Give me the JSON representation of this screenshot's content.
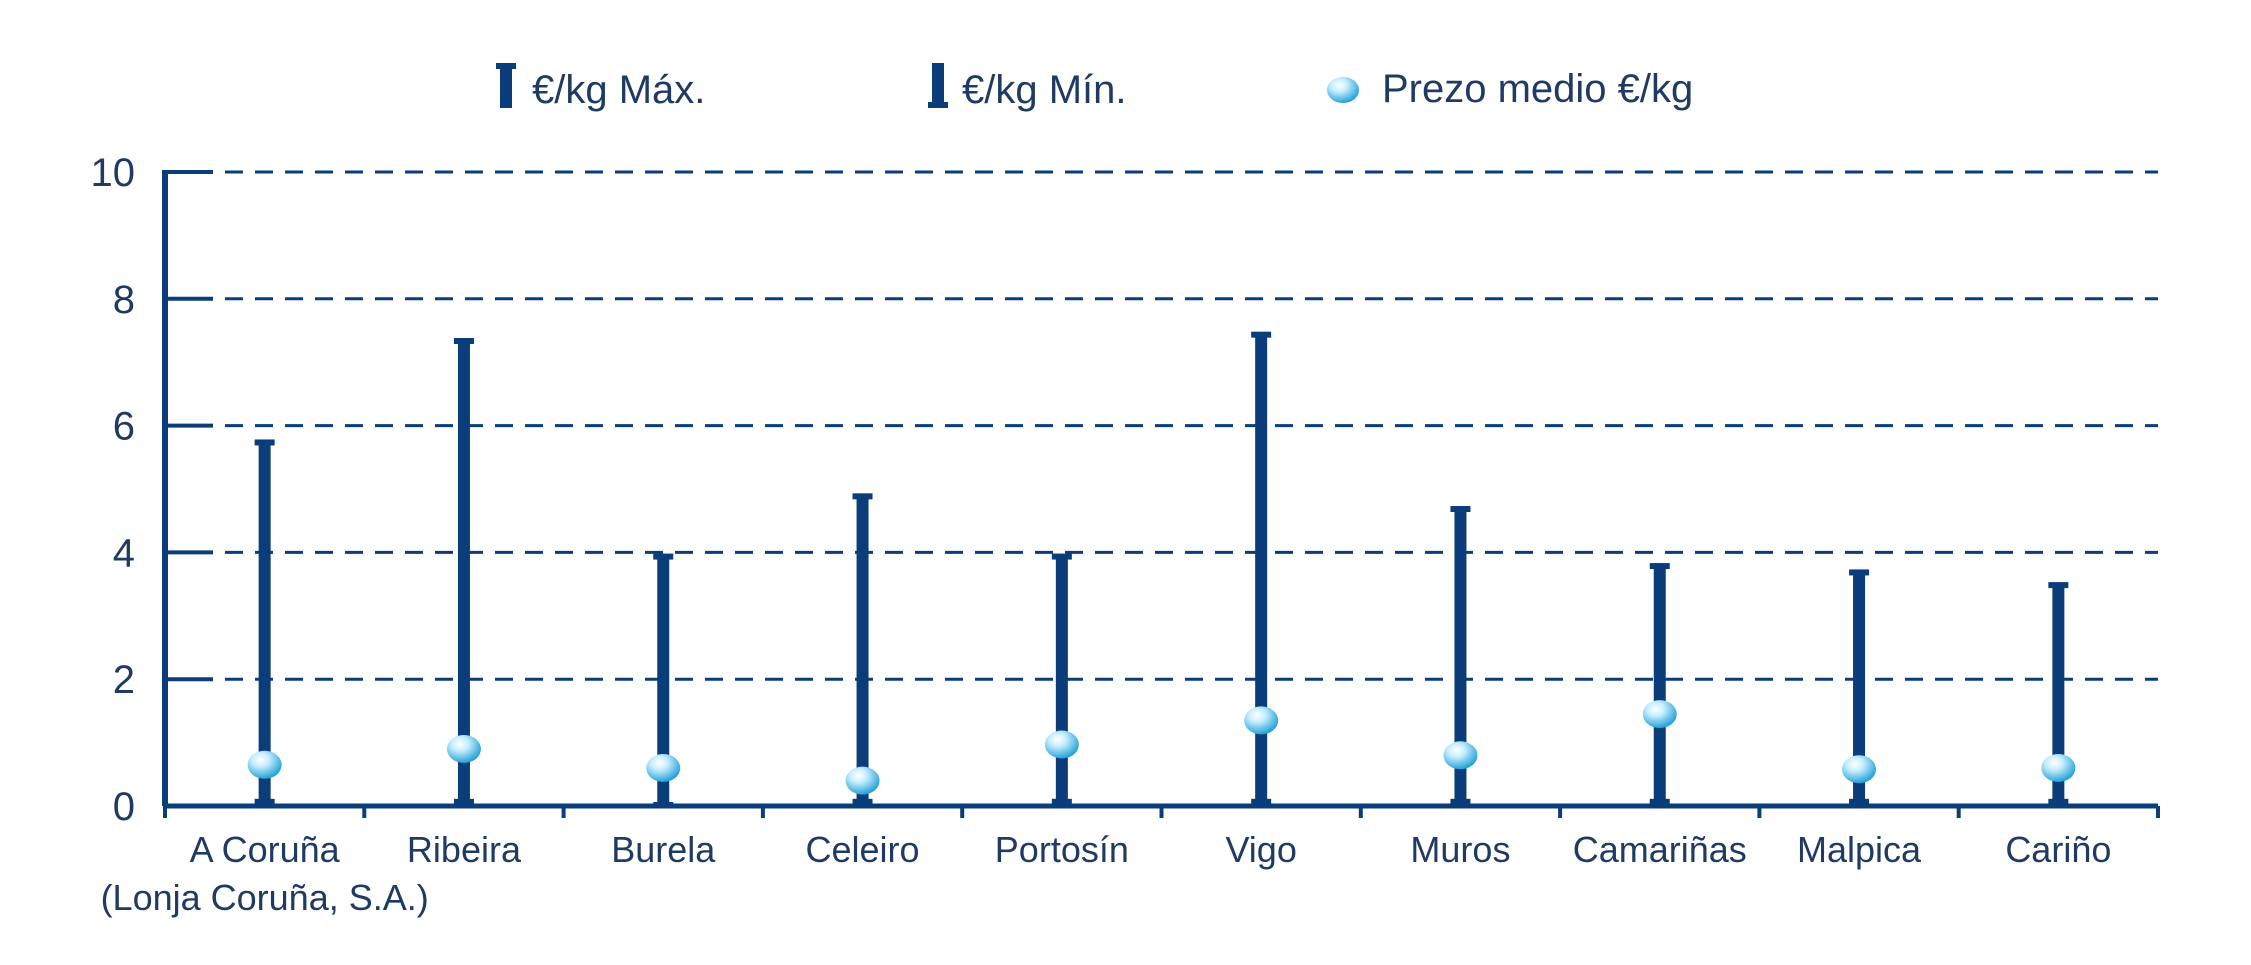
{
  "colors": {
    "bar": "#0b3d7a",
    "grid": "#0b3d7a",
    "axis": "#0b3d7a",
    "text": "#1f3a63",
    "marker_light": "#e6f7ff",
    "marker_dark": "#29a6da"
  },
  "legend": {
    "max_label": "€/kg Máx.",
    "min_label": "€/kg Mín.",
    "mean_label": "Prezo medio €/kg"
  },
  "chart_data": {
    "type": "range-with-mean",
    "categories": [
      [
        "A Coruña",
        "(Lonja Coruña, S.A.)"
      ],
      [
        "Ribeira"
      ],
      [
        "Burela"
      ],
      [
        "Celeiro"
      ],
      [
        "Portosín"
      ],
      [
        "Vigo"
      ],
      [
        "Muros"
      ],
      [
        "Camariñas"
      ],
      [
        "Malpica"
      ],
      [
        "Cariño"
      ]
    ],
    "series": [
      {
        "name": "€/kg Máx.",
        "values": [
          5.75,
          7.35,
          3.95,
          4.9,
          3.95,
          7.45,
          4.7,
          3.8,
          3.7,
          3.5
        ]
      },
      {
        "name": "€/kg Mín.",
        "values": [
          0.05,
          0.05,
          0.0,
          0.05,
          0.05,
          0.05,
          0.05,
          0.05,
          0.05,
          0.05
        ]
      },
      {
        "name": "Prezo medio €/kg",
        "values": [
          0.65,
          0.9,
          0.6,
          0.4,
          0.97,
          1.35,
          0.8,
          1.45,
          0.58,
          0.6
        ]
      }
    ],
    "y_ticks": [
      "0",
      "2",
      "4",
      "6",
      "8",
      "10"
    ],
    "ylim": [
      0,
      10
    ],
    "grid": true,
    "legend_position": "top"
  }
}
